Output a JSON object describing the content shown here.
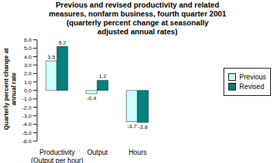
{
  "chart_data": {
    "type": "bar",
    "title": "Previous and revised productivity and related\nmeasures, nonfarm business, fourth quarter 2001\n(quarterly percent change at seasonally\nadjusted annual rates)",
    "y_label": "Quarterly percent change at\nannual rate",
    "categories": [
      "Productivity\n(Output per hour)",
      "Output",
      "Hours"
    ],
    "series": [
      {
        "name": "Previous",
        "color": "#ccffff",
        "values": [
          3.5,
          -0.4,
          -3.7
        ]
      },
      {
        "name": "Revised",
        "color": "#008080",
        "values": [
          5.2,
          1.2,
          -3.8
        ]
      }
    ],
    "ylim": [
      -6,
      6
    ],
    "yticks": [
      {
        "value": -6,
        "label": "-6.0"
      },
      {
        "value": -5,
        "label": "-5.0"
      },
      {
        "value": -4,
        "label": "-4.0"
      },
      {
        "value": -3,
        "label": "-3.0"
      },
      {
        "value": -2,
        "label": "-2.0"
      },
      {
        "value": -1,
        "label": "-1.0"
      },
      {
        "value": 0,
        "label": "0.0"
      },
      {
        "value": 1,
        "label": "1.0"
      },
      {
        "value": 2,
        "label": "2.0"
      },
      {
        "value": 3,
        "label": "3.0"
      },
      {
        "value": 4,
        "label": "4.0"
      },
      {
        "value": 5,
        "label": "5.0"
      },
      {
        "value": 6,
        "label": "6.0"
      }
    ],
    "data_labels": true,
    "legend": "right",
    "grid": false
  }
}
